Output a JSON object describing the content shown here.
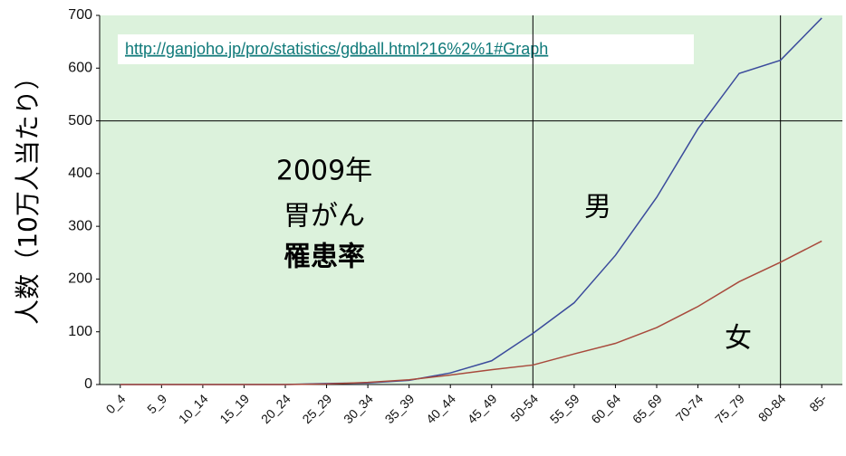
{
  "chart_data": {
    "type": "line",
    "url": "http://ganjoho.jp/pro/statistics/gdball.html?16%2%1#Graph",
    "ylabel": "人数（10万人当たり）",
    "annotations": [
      "2009年",
      "胃がん",
      "罹患率"
    ],
    "categories": [
      "0_4",
      "5_9",
      "10_14",
      "15_19",
      "20_24",
      "25_29",
      "30_34",
      "35_39",
      "40_44",
      "45_49",
      "50-54",
      "55_59",
      "60_64",
      "65_69",
      "70-74",
      "75_79",
      "80-84",
      "85-"
    ],
    "series": [
      {
        "name": "男",
        "color": "#3b4b9c",
        "values": [
          0,
          0,
          0,
          0,
          0,
          2,
          3,
          8,
          22,
          45,
          97,
          155,
          245,
          355,
          485,
          590,
          615,
          695
        ]
      },
      {
        "name": "女",
        "color": "#a84a3c",
        "values": [
          0,
          0,
          0,
          0,
          0,
          1,
          4,
          9,
          18,
          28,
          37,
          58,
          78,
          108,
          148,
          195,
          232,
          272
        ]
      }
    ],
    "ylim": [
      0,
      700
    ],
    "yticks": [
      0,
      100,
      200,
      300,
      400,
      500,
      600,
      700
    ],
    "grid_y": [
      500
    ],
    "grid_x": [
      "50-54",
      "80-84"
    ]
  }
}
